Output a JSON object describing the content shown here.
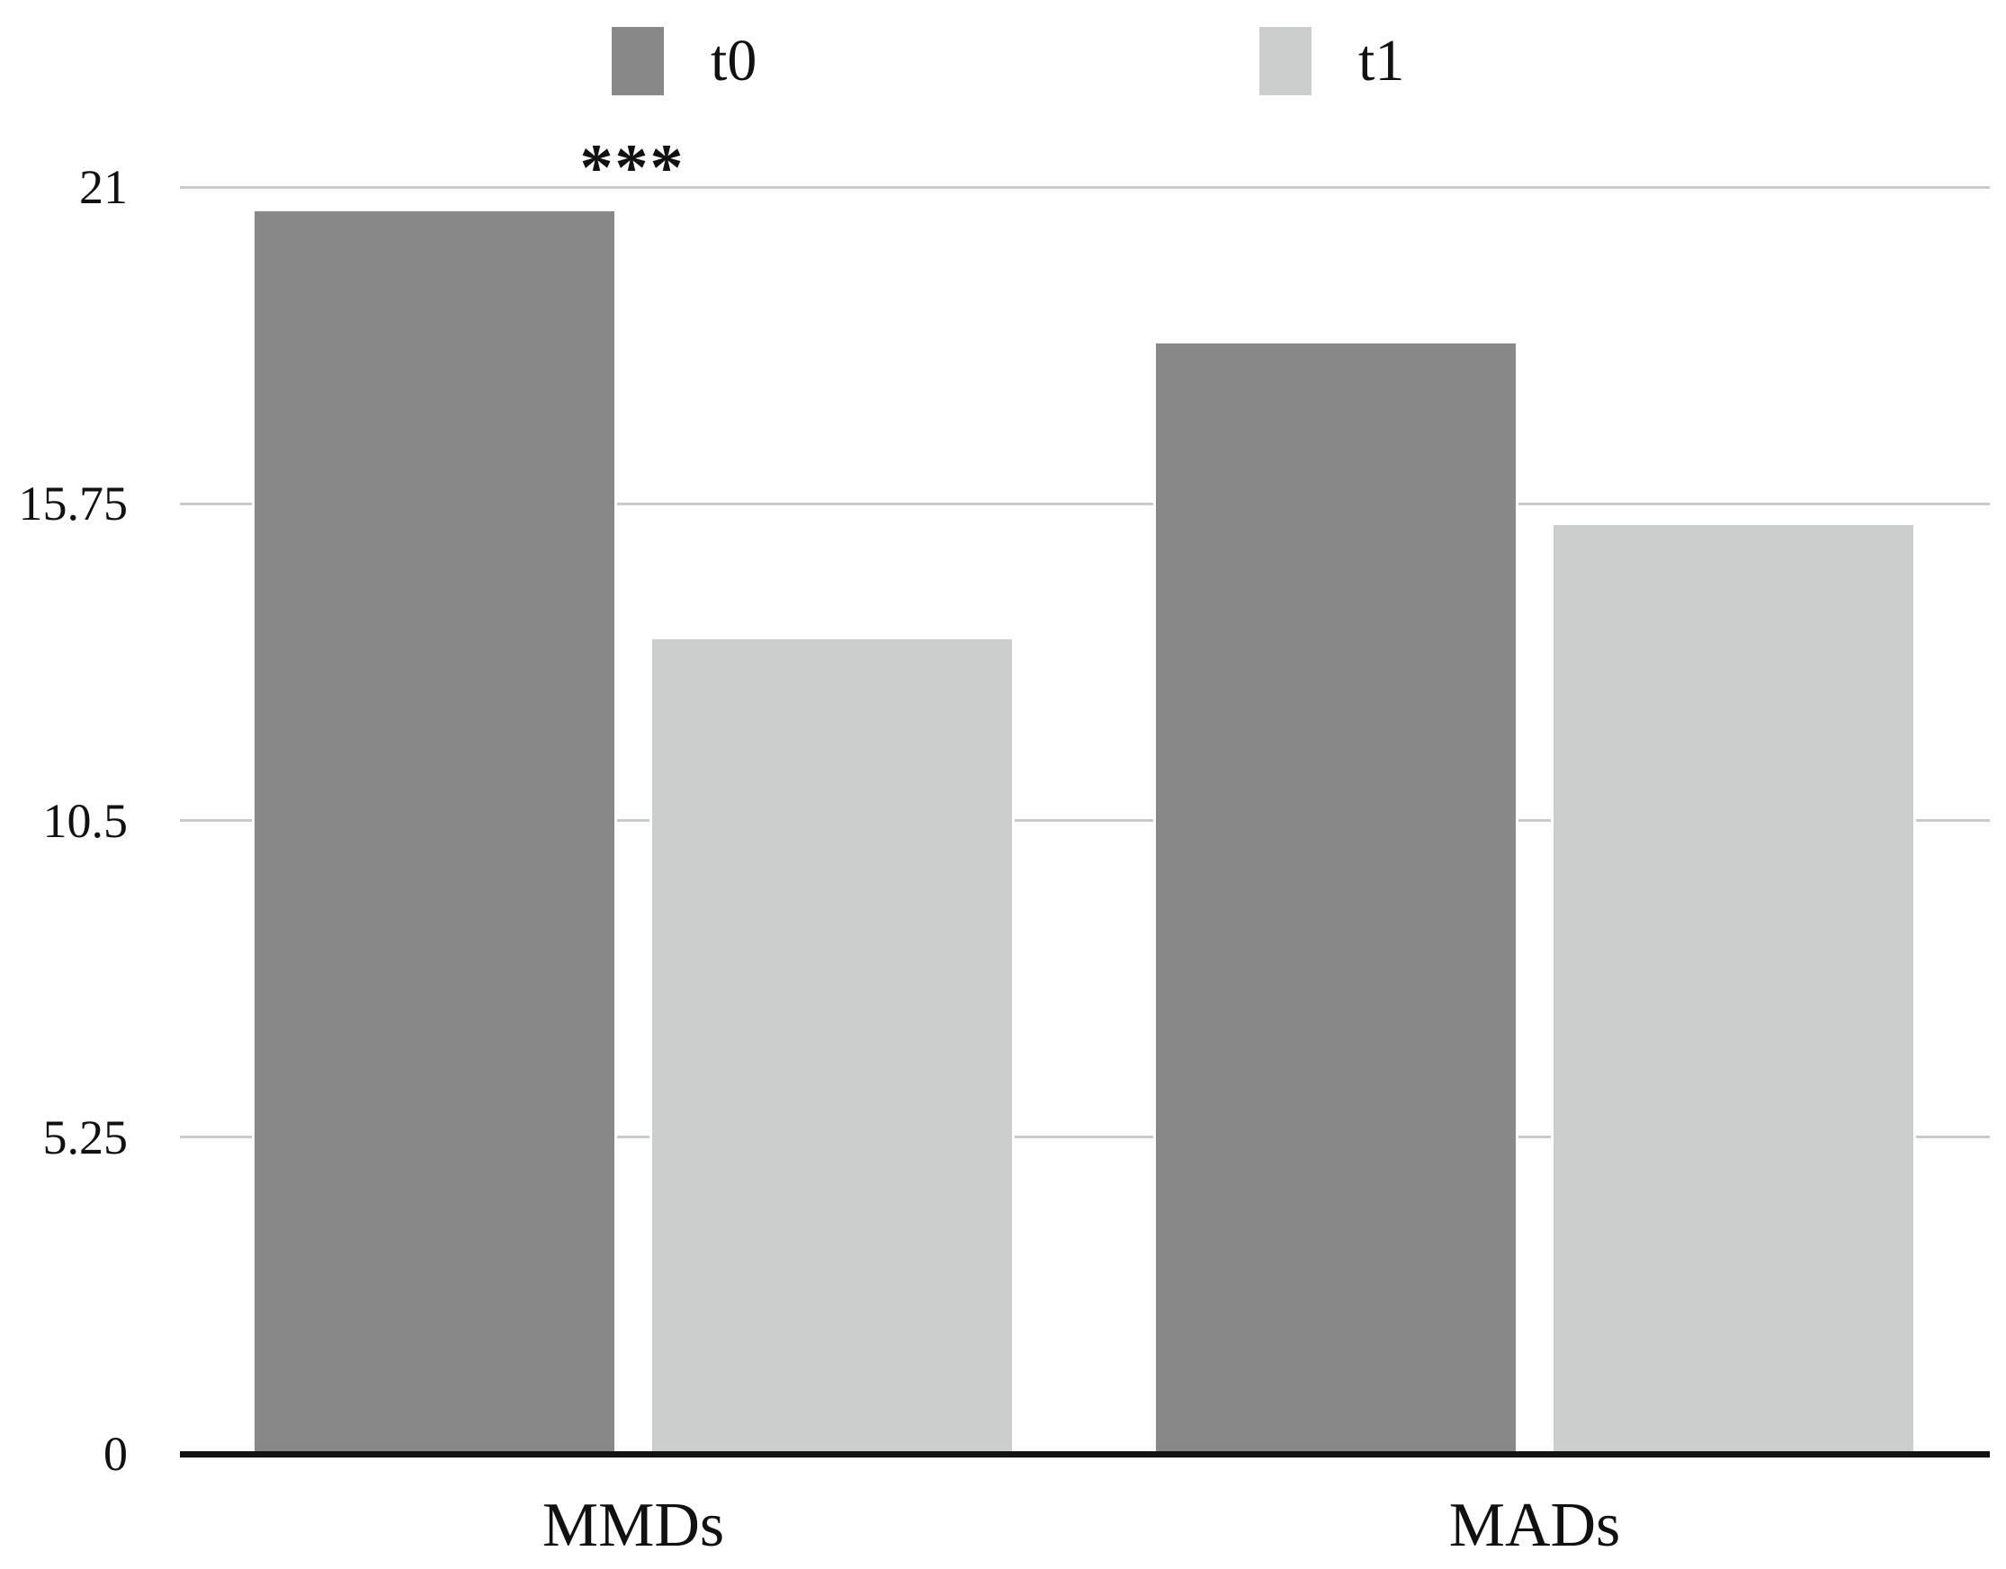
{
  "chart_data": {
    "type": "bar",
    "title": "",
    "categories": [
      "MMDs",
      "MADs"
    ],
    "series": [
      {
        "name": "t0",
        "color": "#888888",
        "values": [
          20.6,
          18.4
        ]
      },
      {
        "name": "t1",
        "color": "#cccecd",
        "values": [
          13.5,
          15.4
        ]
      }
    ],
    "ylim": [
      0,
      21
    ],
    "yticks": [
      0,
      5.25,
      10.5,
      15.75,
      21
    ],
    "ytick_labels": [
      "0",
      "5.25",
      "10.5",
      "15.75",
      "21"
    ],
    "xlabel": "",
    "ylabel": "",
    "grid": "horizontal",
    "legend_position": "top",
    "annotations": [
      {
        "text": "***",
        "category": "MMDs",
        "position": "above-plot"
      }
    ]
  },
  "colors": {
    "gridline": "#c9c9c9",
    "axis_line": "#131313",
    "text": "#111111",
    "background": "#ffffff"
  }
}
